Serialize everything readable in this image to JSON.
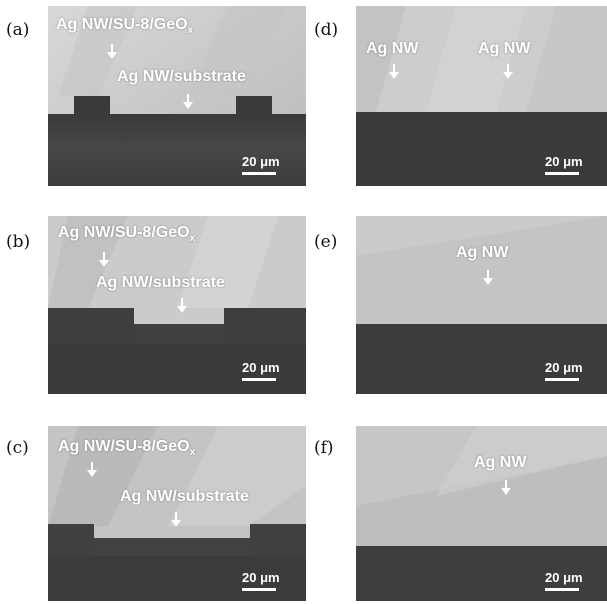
{
  "panels": {
    "a": {
      "label": "(a)",
      "ann_top": "Ag NW/SU-8/GeO",
      "ann_top_sub": "x",
      "ann_mid": "Ag NW/substrate",
      "scale": "20 μm"
    },
    "b": {
      "label": "(b)",
      "ann_top": "Ag NW/SU-8/GeO",
      "ann_top_sub": "x",
      "ann_mid": "Ag NW/substrate",
      "scale": "20 μm"
    },
    "c": {
      "label": "(c)",
      "ann_top": "Ag NW/SU-8/GeO",
      "ann_top_sub": "x",
      "ann_mid": "Ag NW/substrate",
      "scale": "20 μm"
    },
    "d": {
      "label": "(d)",
      "ann_left": "Ag NW",
      "ann_right": "Ag NW",
      "scale": "20 μm"
    },
    "e": {
      "label": "(e)",
      "ann": "Ag NW",
      "scale": "20 μm"
    },
    "f": {
      "label": "(f)",
      "ann": "Ag NW",
      "scale": "20 μm"
    }
  }
}
